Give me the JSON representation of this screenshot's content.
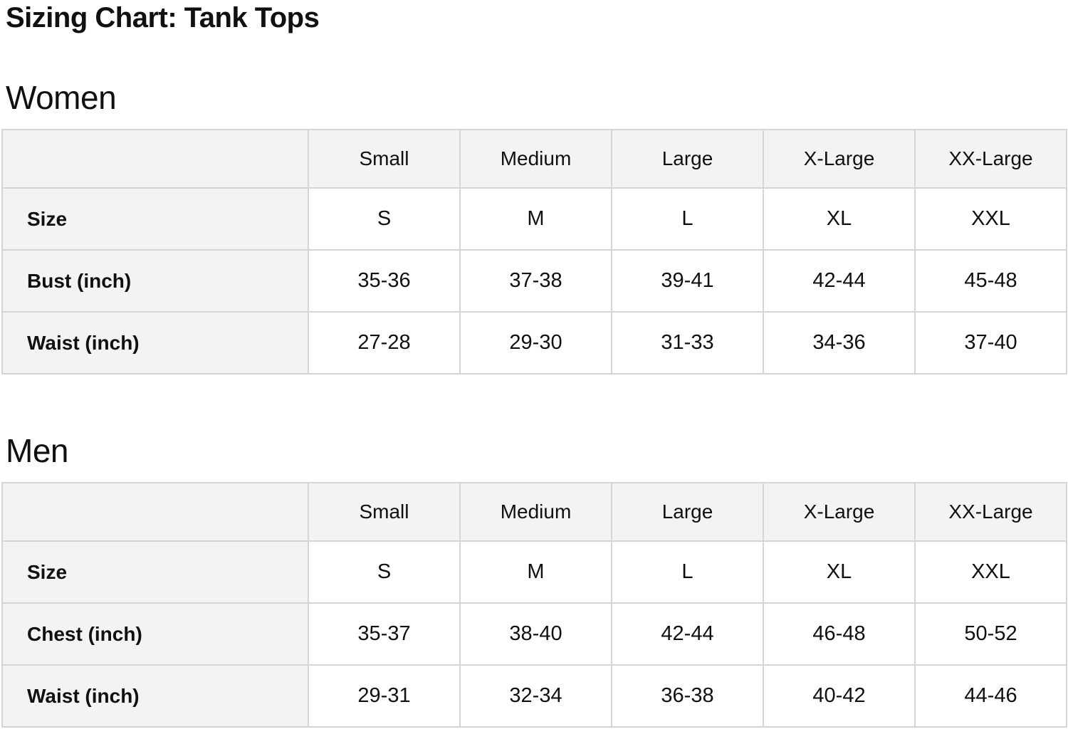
{
  "page": {
    "title": "Sizing Chart: Tank Tops"
  },
  "colors": {
    "header_bg": "#f2f3f3",
    "border": "#d5d5d5",
    "text": "#0f1111",
    "cell_bg": "#ffffff"
  },
  "tables": [
    {
      "section": "Women",
      "columns": [
        "Small",
        "Medium",
        "Large",
        "X-Large",
        "XX-Large"
      ],
      "rows": [
        {
          "label": "Size",
          "values": [
            "S",
            "M",
            "L",
            "XL",
            "XXL"
          ]
        },
        {
          "label": "Bust (inch)",
          "values": [
            "35-36",
            "37-38",
            "39-41",
            "42-44",
            "45-48"
          ]
        },
        {
          "label": "Waist (inch)",
          "values": [
            "27-28",
            "29-30",
            "31-33",
            "34-36",
            "37-40"
          ]
        }
      ]
    },
    {
      "section": "Men",
      "columns": [
        "Small",
        "Medium",
        "Large",
        "X-Large",
        "XX-Large"
      ],
      "rows": [
        {
          "label": "Size",
          "values": [
            "S",
            "M",
            "L",
            "XL",
            "XXL"
          ]
        },
        {
          "label": "Chest (inch)",
          "values": [
            "35-37",
            "38-40",
            "42-44",
            "46-48",
            "50-52"
          ]
        },
        {
          "label": "Waist (inch)",
          "values": [
            "29-31",
            "32-34",
            "36-38",
            "40-42",
            "44-46"
          ]
        }
      ]
    }
  ]
}
